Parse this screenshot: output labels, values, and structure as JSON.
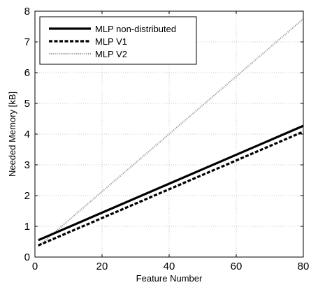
{
  "chart_data": {
    "type": "line",
    "xlabel": "Feature Number",
    "ylabel": "Needed Memory [kB]",
    "xlim": [
      0,
      80
    ],
    "ylim": [
      0,
      8
    ],
    "xticks": [
      0,
      20,
      40,
      60,
      80
    ],
    "yticks": [
      0,
      1,
      2,
      3,
      4,
      5,
      6,
      7,
      8
    ],
    "grid": true,
    "legend_position": "top-left",
    "series": [
      {
        "name": "MLP non-distributed",
        "style": "solid",
        "color": "#000000",
        "x": [
          1,
          80
        ],
        "y": [
          0.55,
          4.27
        ]
      },
      {
        "name": "MLP V1",
        "style": "dashed",
        "color": "#000000",
        "x": [
          1,
          80
        ],
        "y": [
          0.38,
          4.08
        ]
      },
      {
        "name": "MLP V2",
        "style": "dotted",
        "color": "#9a9a9a",
        "x": [
          1,
          80
        ],
        "y": [
          0.35,
          7.75
        ]
      }
    ]
  }
}
